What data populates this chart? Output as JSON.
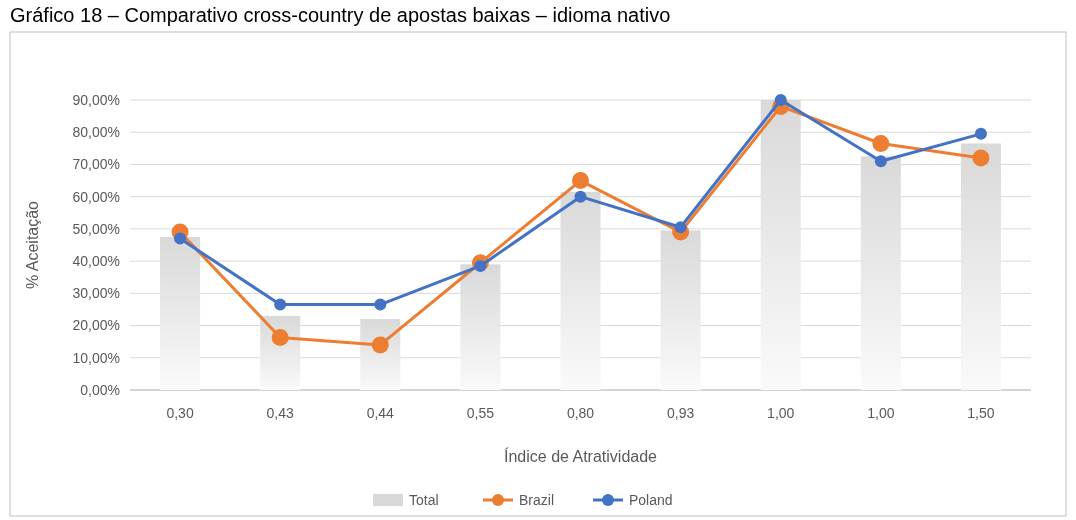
{
  "chart_data": {
    "type": "bar",
    "title": "Gráfico 18 – Comparativo cross-country de apostas baixas – idioma nativo",
    "xlabel": "Índice de Atratividade",
    "ylabel": "% Aceitação",
    "categories": [
      "0,30",
      "0,43",
      "0,44",
      "0,55",
      "0,80",
      "0,93",
      "1,00",
      "1,00",
      "1,50"
    ],
    "series": [
      {
        "name": "Total",
        "color": "#d9d9d9",
        "values": [
          47.5,
          23,
          22,
          39,
          61.5,
          49.5,
          90,
          72.5,
          76.5
        ]
      },
      {
        "name": "Brazil",
        "type": "line",
        "color": "#ed7d31",
        "values": [
          49,
          16.3,
          14,
          39.5,
          65,
          49,
          88,
          76.5,
          72
        ]
      },
      {
        "name": "Poland",
        "type": "line",
        "color": "#4472c4",
        "values": [
          47,
          26.5,
          26.5,
          38.5,
          60,
          50.5,
          90,
          71,
          79.5
        ]
      }
    ],
    "ylim": [
      0,
      90
    ],
    "yticks": [
      {
        "value": 0,
        "label": "0,00%"
      },
      {
        "value": 10,
        "label": "10,00%"
      },
      {
        "value": 20,
        "label": "20,00%"
      },
      {
        "value": 30,
        "label": "30,00%"
      },
      {
        "value": 40,
        "label": "40,00%"
      },
      {
        "value": 50,
        "label": "50,00%"
      },
      {
        "value": 60,
        "label": "60,00%"
      },
      {
        "value": 70,
        "label": "70,00%"
      },
      {
        "value": 80,
        "label": "80,00%"
      },
      {
        "value": 90,
        "label": "90,00%"
      }
    ],
    "grid": "y",
    "legend": "bottom",
    "marker": "circle",
    "line_style": "solid"
  }
}
